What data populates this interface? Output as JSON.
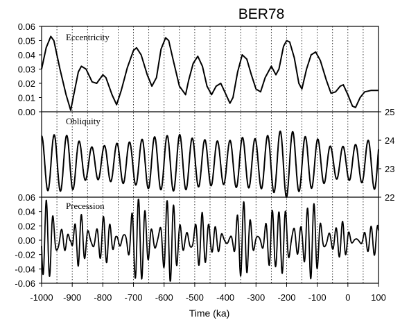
{
  "chart_data": {
    "type": "line",
    "title": "BER78",
    "xlabel": "Time (ka)",
    "xlim": [
      -1000,
      100
    ],
    "x_ticks": [
      "-1000",
      "-900",
      "-800",
      "-700",
      "-600",
      "-500",
      "-400",
      "-300",
      "-200",
      "-100",
      "0",
      "100"
    ],
    "grid": "dotted vertical lines every 50 ka",
    "panels": [
      {
        "name": "Eccentricity",
        "yaxis_side": "left",
        "ylim": [
          0,
          0.06
        ],
        "y_ticks": [
          "0.00",
          "0.01",
          "0.02",
          "0.03",
          "0.04",
          "0.05",
          "0.06"
        ],
        "points": [
          [
            -1000,
            0.03
          ],
          [
            -985,
            0.045
          ],
          [
            -970,
            0.053
          ],
          [
            -960,
            0.05
          ],
          [
            -940,
            0.03
          ],
          [
            -920,
            0.012
          ],
          [
            -905,
            0.001
          ],
          [
            -895,
            0.012
          ],
          [
            -880,
            0.028
          ],
          [
            -870,
            0.032
          ],
          [
            -855,
            0.03
          ],
          [
            -835,
            0.021
          ],
          [
            -820,
            0.02
          ],
          [
            -800,
            0.026
          ],
          [
            -790,
            0.024
          ],
          [
            -770,
            0.012
          ],
          [
            -755,
            0.005
          ],
          [
            -740,
            0.015
          ],
          [
            -720,
            0.031
          ],
          [
            -700,
            0.043
          ],
          [
            -690,
            0.045
          ],
          [
            -675,
            0.04
          ],
          [
            -655,
            0.026
          ],
          [
            -640,
            0.018
          ],
          [
            -625,
            0.024
          ],
          [
            -610,
            0.044
          ],
          [
            -595,
            0.052
          ],
          [
            -585,
            0.05
          ],
          [
            -570,
            0.036
          ],
          [
            -550,
            0.018
          ],
          [
            -530,
            0.012
          ],
          [
            -520,
            0.022
          ],
          [
            -505,
            0.034
          ],
          [
            -490,
            0.039
          ],
          [
            -475,
            0.032
          ],
          [
            -460,
            0.018
          ],
          [
            -445,
            0.012
          ],
          [
            -430,
            0.018
          ],
          [
            -415,
            0.02
          ],
          [
            -400,
            0.013
          ],
          [
            -385,
            0.006
          ],
          [
            -375,
            0.01
          ],
          [
            -360,
            0.028
          ],
          [
            -345,
            0.04
          ],
          [
            -330,
            0.037
          ],
          [
            -315,
            0.026
          ],
          [
            -300,
            0.016
          ],
          [
            -285,
            0.014
          ],
          [
            -270,
            0.024
          ],
          [
            -250,
            0.032
          ],
          [
            -235,
            0.026
          ],
          [
            -225,
            0.03
          ],
          [
            -210,
            0.046
          ],
          [
            -200,
            0.05
          ],
          [
            -190,
            0.049
          ],
          [
            -175,
            0.038
          ],
          [
            -160,
            0.02
          ],
          [
            -150,
            0.016
          ],
          [
            -135,
            0.03
          ],
          [
            -120,
            0.04
          ],
          [
            -105,
            0.042
          ],
          [
            -90,
            0.036
          ],
          [
            -70,
            0.022
          ],
          [
            -55,
            0.013
          ],
          [
            -40,
            0.014
          ],
          [
            -25,
            0.018
          ],
          [
            -15,
            0.019
          ],
          [
            0,
            0.012
          ],
          [
            15,
            0.004
          ],
          [
            25,
            0.003
          ],
          [
            40,
            0.01
          ],
          [
            55,
            0.014
          ],
          [
            75,
            0.015
          ],
          [
            100,
            0.015
          ]
        ]
      },
      {
        "name": "Obliquity",
        "yaxis_side": "right",
        "ylim": [
          22,
          25
        ],
        "y_ticks": [
          "22",
          "23",
          "24",
          "25"
        ],
        "period_ka": 41,
        "mean": 23.2,
        "amplitude_envelope": [
          [
            -1000,
            0.95
          ],
          [
            -950,
            1.0
          ],
          [
            -900,
            0.95
          ],
          [
            -850,
            0.55
          ],
          [
            -800,
            0.6
          ],
          [
            -750,
            0.7
          ],
          [
            -700,
            0.75
          ],
          [
            -650,
            0.9
          ],
          [
            -600,
            0.95
          ],
          [
            -550,
            1.0
          ],
          [
            -500,
            0.85
          ],
          [
            -450,
            0.8
          ],
          [
            -400,
            0.75
          ],
          [
            -350,
            0.9
          ],
          [
            -300,
            0.85
          ],
          [
            -250,
            1.0
          ],
          [
            -200,
            1.2
          ],
          [
            -150,
            0.95
          ],
          [
            -100,
            0.85
          ],
          [
            -50,
            0.55
          ],
          [
            0,
            0.6
          ],
          [
            50,
            0.7
          ],
          [
            100,
            1.0
          ]
        ]
      },
      {
        "name": "Precession",
        "yaxis_side": "left",
        "ylim": [
          -0.06,
          0.06
        ],
        "y_ticks": [
          "0.06",
          "0.04",
          "0.02",
          "0.00",
          "-0.02",
          "-0.04",
          "-0.06"
        ],
        "periods_ka": [
          23,
          19
        ],
        "amplitude_follows": "Eccentricity"
      }
    ]
  }
}
